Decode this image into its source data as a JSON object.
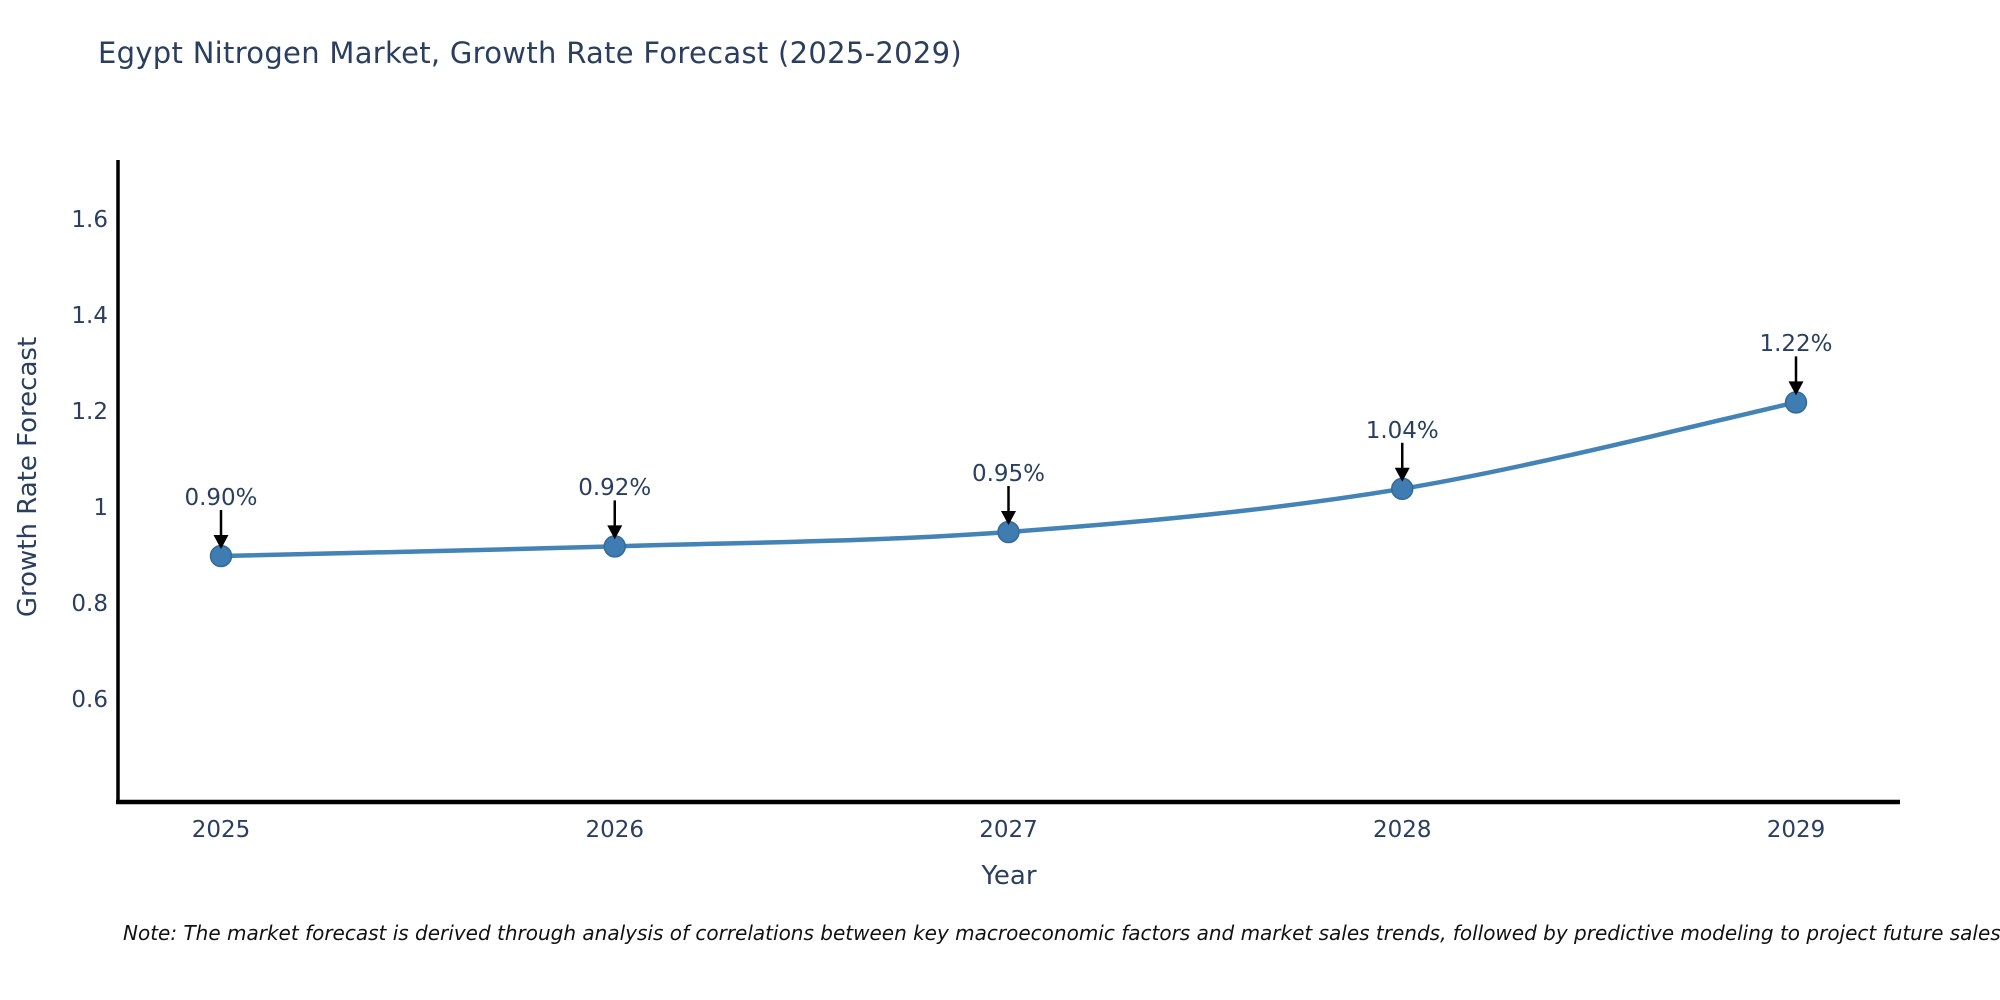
{
  "chart_data": {
    "type": "line",
    "title": "Egypt Nitrogen Market, Growth Rate Forecast (2025-2029)",
    "xlabel": "Year",
    "ylabel": "Growth Rate Forecast",
    "categories": [
      "2025",
      "2026",
      "2027",
      "2028",
      "2029"
    ],
    "series": [
      {
        "name": "Growth Rate Forecast",
        "values": [
          0.9,
          0.92,
          0.95,
          1.04,
          1.22
        ],
        "point_labels": [
          "0.90%",
          "0.92%",
          "0.95%",
          "1.04%",
          "1.22%"
        ]
      }
    ],
    "yticks": {
      "values": [
        0.6,
        0.8,
        1,
        1.2,
        1.4,
        1.6
      ],
      "labels": [
        "0.6",
        "0.8",
        "1",
        "1.2",
        "1.4",
        "1.6"
      ]
    },
    "ylim": [
      0.3875,
      1.725
    ],
    "grid": false,
    "legend_position": "none",
    "line_shape": "spline",
    "annotations": "arrow-down-to-each-point",
    "colors": {
      "line": "#4383b5",
      "marker_fill": "#3e7cb1",
      "marker_edge": "#35699a",
      "arrow": "#000000",
      "axis": "#000000",
      "text": "#2a3f5f",
      "note": "#111111"
    }
  },
  "note": "Note: The market forecast is derived through analysis of correlations between key macroeconomic factors and market sales trends, followed by predictive modeling to project future sales"
}
